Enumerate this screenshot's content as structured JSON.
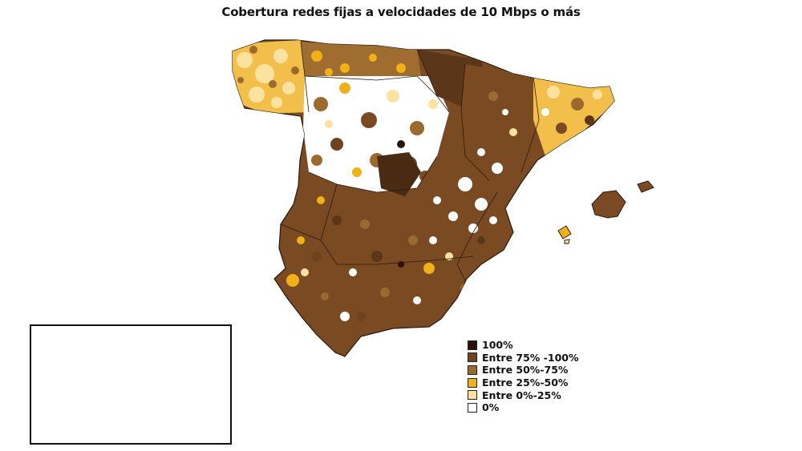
{
  "title": "Cobertura redes fijas a velocidades de 10 Mbps o más",
  "legend": [
    {
      "label": "100%",
      "color": "#2a1308"
    },
    {
      "label": "Entre 75% -100%",
      "color": "#6e4320"
    },
    {
      "label": "Entre 50%-75%",
      "color": "#9a6a2f"
    },
    {
      "label": "Entre 25%-50%",
      "color": "#f0b018"
    },
    {
      "label": "Entre 0%-25%",
      "color": "#fbe2a0"
    },
    {
      "label": "0%",
      "color": "#ffffff"
    }
  ]
}
